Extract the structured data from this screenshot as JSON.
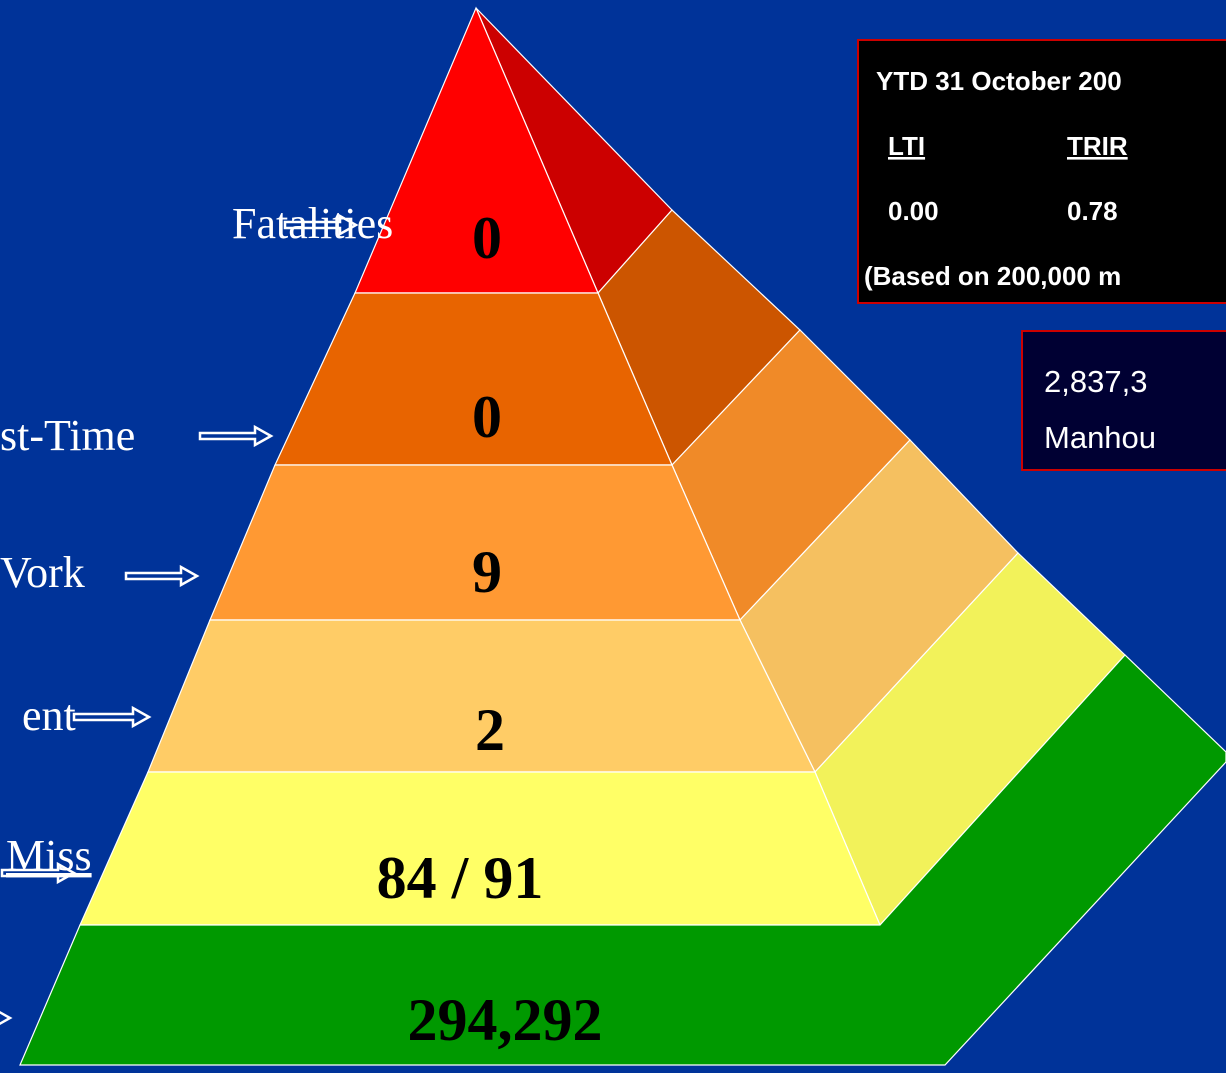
{
  "levels": [
    {
      "label": "Fatalities",
      "value": "0"
    },
    {
      "label": "st-Time",
      "value": "0"
    },
    {
      "label": "Vork",
      "value": "9"
    },
    {
      "label": "ent",
      "value": "2"
    },
    {
      "label": "Miss",
      "value": "84 / 91"
    },
    {
      "value": "294,292"
    }
  ],
  "stats_box": {
    "title": "YTD 31 October 200",
    "headers": [
      "LTI",
      "TRIR"
    ],
    "values": [
      "0.00",
      "0.78"
    ],
    "note": "(Based on 200,000 m"
  },
  "manhours_box": {
    "lines": [
      "2,837,3",
      "Manhou"
    ]
  }
}
